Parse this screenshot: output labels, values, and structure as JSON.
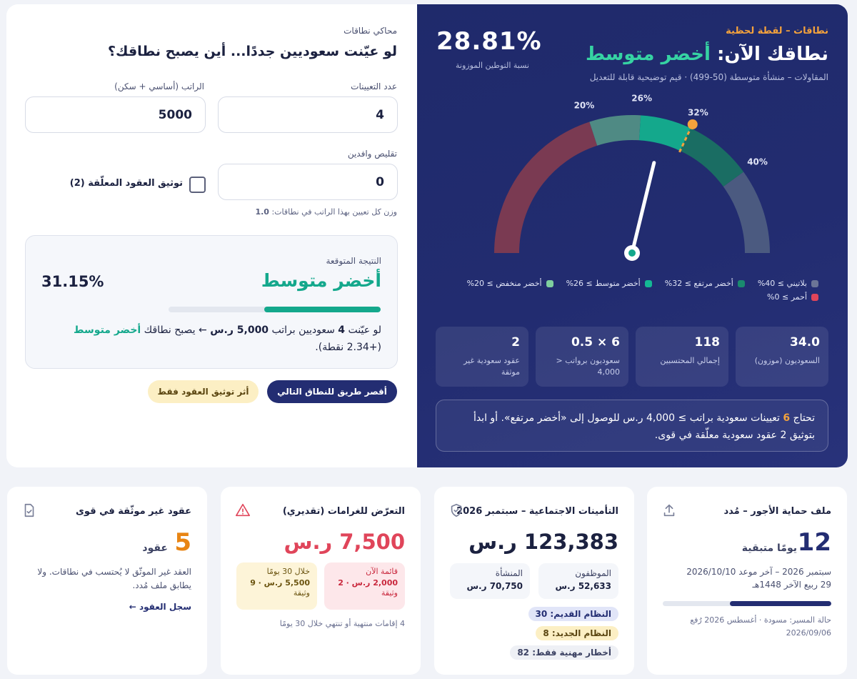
{
  "simulator": {
    "eyebrow": "محاكي نطاقات",
    "question": "لو عيّنت سعوديين جددًا... أين يصبح نطاقك؟",
    "hires_label": "عدد التعيينات",
    "hires_value": "4",
    "salary_label": "الراتب (أساسي + سكن)",
    "salary_value": "5000",
    "reduce_label": "تقليص وافدين",
    "reduce_value": "0",
    "checkbox_label": "توثيق العقود المعلّقة (2)",
    "weight_note_prefix": "وزن كل تعيين بهذا الراتب في نطاقات: ",
    "weight_value": "1.0",
    "result_label": "النتيجة المتوقعة",
    "result_band": "أخضر متوسط",
    "result_pct": "31.15%",
    "result_progress": 0.55,
    "result_text_1": "لو عيّنت ",
    "result_hires": "4",
    "result_text_2": " سعوديين براتب ",
    "result_salary": "5,000 ر.س",
    "result_text_3": " ← يصبح نطاقك ",
    "result_band_inline": "أخضر متوسط",
    "result_points": "(+2.34 نقطة).",
    "btn_shortest": "أقصر طريق للنطاق التالي",
    "btn_docs": "أثر توثيق العقود فقط"
  },
  "status": {
    "eyebrow": "نطاقات – لقطة لحظية",
    "title_prefix": "نطاقك الآن: ",
    "title_band": "أخضر متوسط",
    "subtitle": "المقاولات – منشأة متوسطة (50-499) · قيم توضيحية قابلة للتعديل",
    "pct": "28.81%",
    "pct_label": "نسبة التوطين الموزونة",
    "gauge": {
      "value": 28.81,
      "max": 50,
      "target": 32,
      "ticks": [
        "20%",
        "26%",
        "32%",
        "40%"
      ],
      "tick_values": [
        20,
        26,
        32,
        40
      ],
      "segments": [
        {
          "from": 0,
          "to": 20,
          "color": "#7a3a52"
        },
        {
          "from": 20,
          "to": 26,
          "color": "#4f8a84"
        },
        {
          "from": 26,
          "to": 32,
          "color": "#14a88c"
        },
        {
          "from": 32,
          "to": 40,
          "color": "#1a6d63"
        },
        {
          "from": 40,
          "to": 50,
          "color": "#4b5a80"
        }
      ]
    },
    "legend": [
      {
        "label": "بلاتيني ≥ 40%",
        "color": "#6b7596"
      },
      {
        "label": "أخضر مرتفع ≥ 32%",
        "color": "#1a8a6e"
      },
      {
        "label": "أخضر متوسط ≥ 26%",
        "color": "#14b894"
      },
      {
        "label": "أخضر منخفض ≥ 20%",
        "color": "#7fcf9f"
      },
      {
        "label": "أحمر ≥ 0%",
        "color": "#e0455a"
      }
    ],
    "stats": [
      {
        "value": "34.0",
        "label": "السعوديون (موزون)"
      },
      {
        "value": "118",
        "label": "إجمالي المحتسبين"
      },
      {
        "value": "6 × 0.5",
        "label": "سعوديون برواتب < 4,000"
      },
      {
        "value": "2",
        "label": "عقود سعودية غير موثقة"
      }
    ],
    "hint_1": "تحتاج ",
    "hint_num": "6",
    "hint_2": " تعيينات سعودية براتب ≥ 4,000 ر.س للوصول إلى «أخضر مرتفع». أو ابدأ بتوثيق 2 عقود سعودية معلّقة في قوى."
  },
  "cards": {
    "wps": {
      "title": "ملف حماية الأجور – مُدد",
      "days": "12",
      "days_label": "يومًا متبقية",
      "line1": "سبتمبر 2026 – آخر موعد 2026/10/10",
      "line2": "29 ربيع الآخر 1448هـ",
      "progress": 0.6,
      "foot1": "حالة المسير: مسودة · أغسطس 2026 رُفع",
      "foot2": "2026/09/06"
    },
    "gosi": {
      "title": "التأمينات الاجتماعية – سبتمبر 2026",
      "amount": "123,383 ر.س",
      "emp_label": "الموظفون",
      "emp_value": "52,633 ر.س",
      "est_label": "المنشأة",
      "est_value": "70,750 ر.س",
      "old": "النظام القديم: 30",
      "new": "النظام الجديد: 8",
      "hazard": "أخطار مهنية فقط: 82"
    },
    "fines": {
      "title": "التعرّض للغرامات (تقديري)",
      "amount": "7,500 ر.س",
      "now_label": "قائمة الآن",
      "now_value": "2,000 ر.س · 2",
      "now_unit": "وثيقة",
      "soon_label": "خلال 30 يومًا",
      "soon_value": "5,500 ر.س · 9",
      "soon_unit": "وثيقة",
      "foot": "4 إقامات منتهية أو تنتهي خلال 30 يومًا"
    },
    "contracts": {
      "title": "عقود غير موثّقة في قوى",
      "count": "5",
      "count_label": "عقود",
      "desc": "العقد غير الموثّق لا يُحتسب في نطاقات. ولا يطابق ملف مُدد.",
      "link": "سجل العقود ←"
    }
  },
  "colors": {
    "green": "#14a88c",
    "orange": "#f4a23c",
    "red": "#e0455a",
    "navy": "#232d72"
  }
}
